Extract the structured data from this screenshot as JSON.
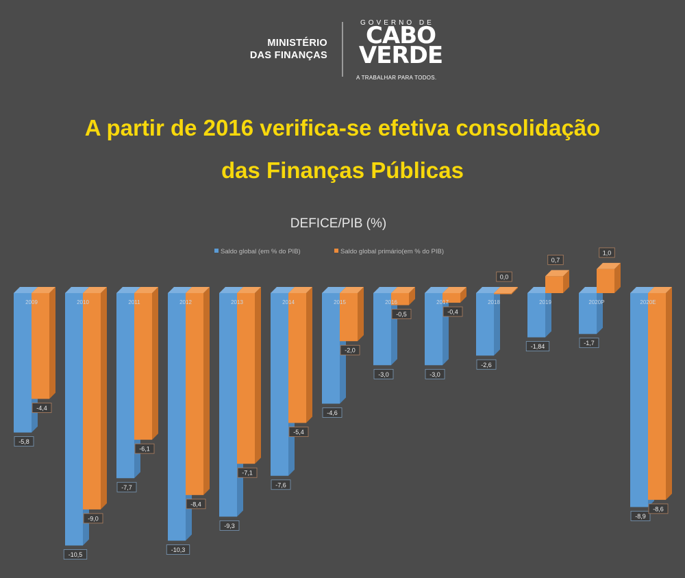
{
  "header": {
    "ministry_line1": "MINISTÉRIO",
    "ministry_line2": "DAS FINANÇAS",
    "gov_top": "GOVERNO DE",
    "gov_name_line1": "CABO",
    "gov_name_line2": "VERDE",
    "gov_slogan": "A TRABALHAR PARA TODOS."
  },
  "headline": {
    "line1": "A partir de 2016 verifica-se efetiva consolidação",
    "line2": "das Finanças Públicas"
  },
  "colors": {
    "blue": "#5b9bd5",
    "orange": "#ed8b3a",
    "title": "#f7d80c"
  },
  "chart_data": {
    "type": "bar",
    "title": "DEFICE/PIB (%)",
    "categories": [
      "2009",
      "2010",
      "2011",
      "2012",
      "2013",
      "2014",
      "2015",
      "2016",
      "2017",
      "2018",
      "2019",
      "2020P",
      "2020E"
    ],
    "series": [
      {
        "name": "Saldo global (em % do PIB)",
        "values": [
          -5.8,
          -10.5,
          -7.7,
          -10.3,
          -9.3,
          -7.6,
          -4.6,
          -3.0,
          -3.0,
          -2.6,
          -1.84,
          -1.7,
          -8.9
        ],
        "labels": [
          "-5,8",
          "-10,5",
          "-7,7",
          "-10,3",
          "-9,3",
          "-7,6",
          "-4,6",
          "-3,0",
          "-3,0",
          "-2,6",
          "-1,84",
          "-1,7",
          "-8,9"
        ]
      },
      {
        "name": "Saldo global primário(em % do PIB)",
        "values": [
          -4.4,
          -9.0,
          -6.1,
          -8.4,
          -7.1,
          -5.4,
          -2.0,
          -0.5,
          -0.4,
          0.0,
          0.7,
          1.0,
          -8.6
        ],
        "labels": [
          "-4,4",
          "-9,0",
          "-6,1",
          "-8,4",
          "-7,1",
          "-5,4",
          "-2,0",
          "-0,5",
          "-0,4",
          "0,0",
          "0,7",
          "1,0",
          "-8,6"
        ]
      }
    ],
    "legend": "top-center",
    "grid": false
  }
}
